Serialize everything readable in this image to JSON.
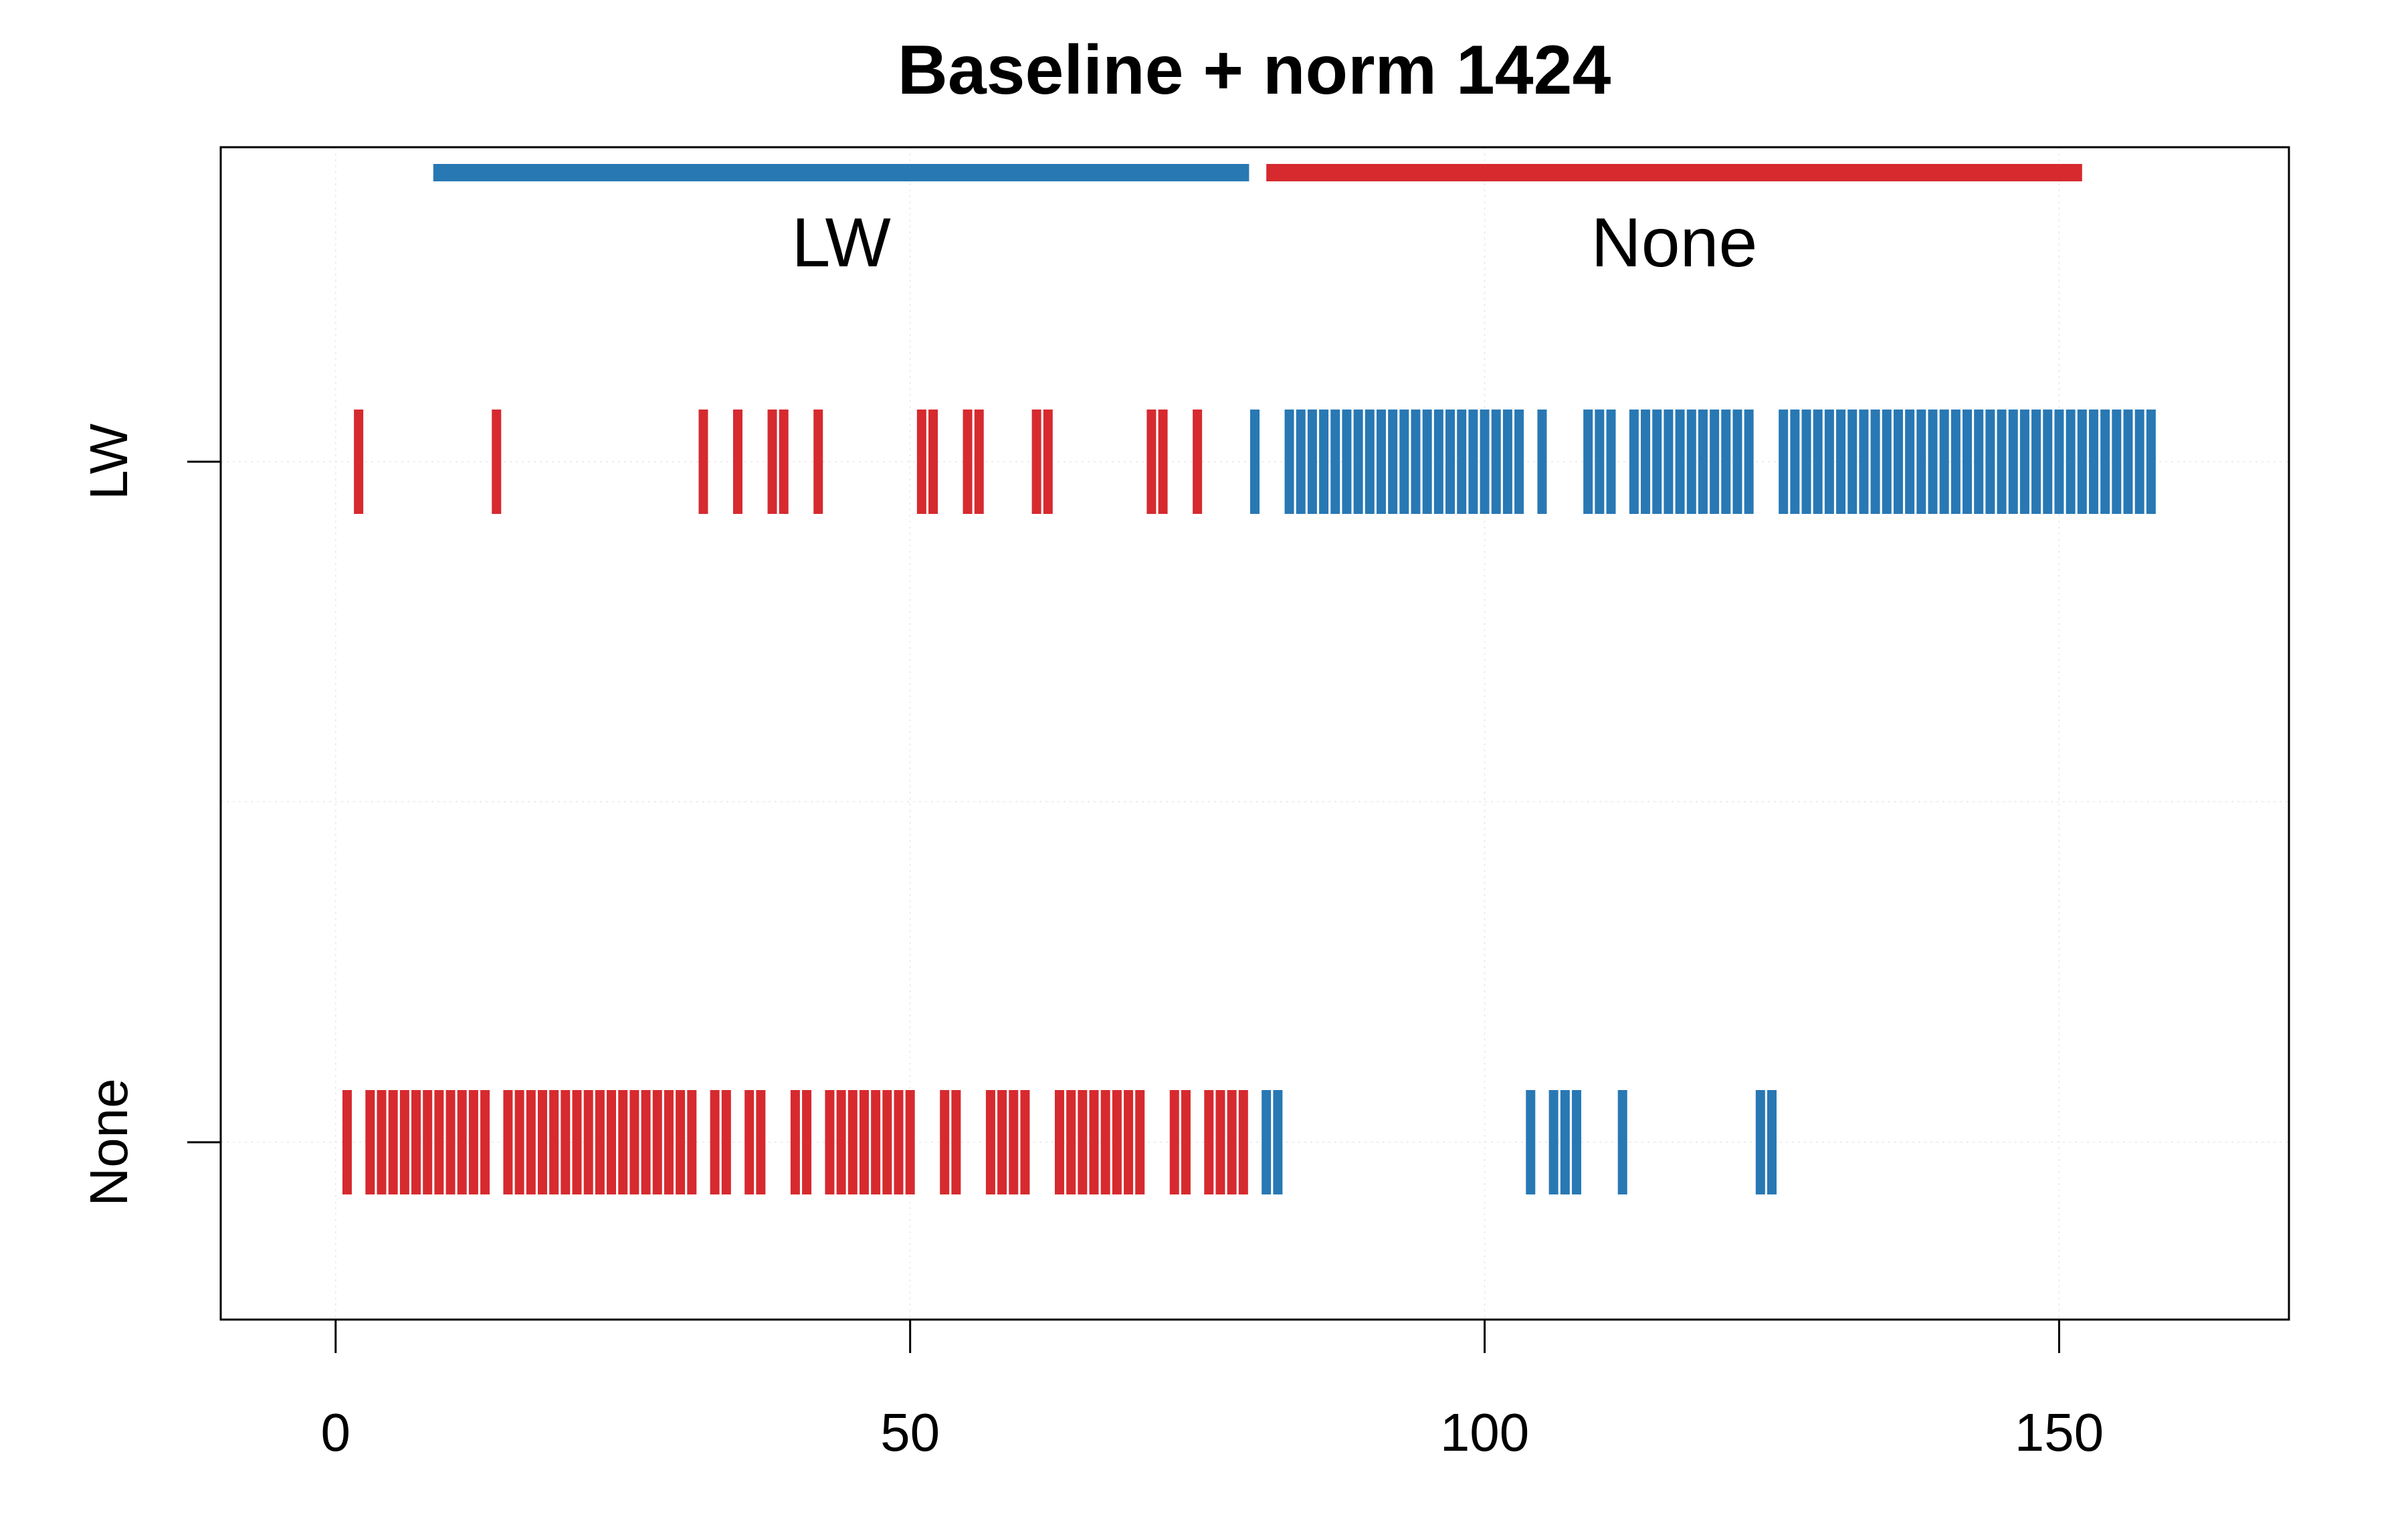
{
  "chart_data": {
    "type": "scatter",
    "title": "Baseline + norm 1424",
    "xlim": [
      -10,
      170
    ],
    "x_ticks": [
      "0",
      "50",
      "100",
      "150"
    ],
    "x_tick_values": [
      0,
      50,
      100,
      150
    ],
    "y_categories": [
      "LW",
      "None"
    ],
    "grid": true,
    "colors": {
      "LW": "#2878b4",
      "None": "#d62a2f"
    },
    "group_bars": [
      {
        "label": "LW",
        "color_class": "LW",
        "x_start": 8.5,
        "x_end": 79.5
      },
      {
        "label": "None",
        "color_class": "None",
        "x_start": 81,
        "x_end": 152
      }
    ],
    "rows": [
      {
        "row": "LW",
        "marks": [
          {
            "x": 2,
            "color_class": "None"
          },
          {
            "x": 14,
            "color_class": "None"
          },
          {
            "x": 32,
            "color_class": "None"
          },
          {
            "x": 35,
            "color_class": "None"
          },
          {
            "x": 38,
            "color_class": "None"
          },
          {
            "x": 39,
            "color_class": "None"
          },
          {
            "x": 42,
            "color_class": "None"
          },
          {
            "x": 51,
            "color_class": "None"
          },
          {
            "x": 52,
            "color_class": "None"
          },
          {
            "x": 55,
            "color_class": "None"
          },
          {
            "x": 56,
            "color_class": "None"
          },
          {
            "x": 61,
            "color_class": "None"
          },
          {
            "x": 62,
            "color_class": "None"
          },
          {
            "x": 71,
            "color_class": "None"
          },
          {
            "x": 72,
            "color_class": "None"
          },
          {
            "x": 75,
            "color_class": "None"
          },
          {
            "x": 80,
            "color_class": "LW"
          },
          {
            "x": 83,
            "color_class": "LW"
          },
          {
            "x": 84,
            "color_class": "LW"
          },
          {
            "x": 85,
            "color_class": "LW"
          },
          {
            "x": 86,
            "color_class": "LW"
          },
          {
            "x": 87,
            "color_class": "LW"
          },
          {
            "x": 88,
            "color_class": "LW"
          },
          {
            "x": 89,
            "color_class": "LW"
          },
          {
            "x": 90,
            "color_class": "LW"
          },
          {
            "x": 91,
            "color_class": "LW"
          },
          {
            "x": 92,
            "color_class": "LW"
          },
          {
            "x": 93,
            "color_class": "LW"
          },
          {
            "x": 94,
            "color_class": "LW"
          },
          {
            "x": 95,
            "color_class": "LW"
          },
          {
            "x": 96,
            "color_class": "LW"
          },
          {
            "x": 97,
            "color_class": "LW"
          },
          {
            "x": 98,
            "color_class": "LW"
          },
          {
            "x": 99,
            "color_class": "LW"
          },
          {
            "x": 100,
            "color_class": "LW"
          },
          {
            "x": 101,
            "color_class": "LW"
          },
          {
            "x": 102,
            "color_class": "LW"
          },
          {
            "x": 103,
            "color_class": "LW"
          },
          {
            "x": 105,
            "color_class": "LW"
          },
          {
            "x": 109,
            "color_class": "LW"
          },
          {
            "x": 110,
            "color_class": "LW"
          },
          {
            "x": 111,
            "color_class": "LW"
          },
          {
            "x": 113,
            "color_class": "LW"
          },
          {
            "x": 114,
            "color_class": "LW"
          },
          {
            "x": 115,
            "color_class": "LW"
          },
          {
            "x": 116,
            "color_class": "LW"
          },
          {
            "x": 117,
            "color_class": "LW"
          },
          {
            "x": 118,
            "color_class": "LW"
          },
          {
            "x": 119,
            "color_class": "LW"
          },
          {
            "x": 120,
            "color_class": "LW"
          },
          {
            "x": 121,
            "color_class": "LW"
          },
          {
            "x": 122,
            "color_class": "LW"
          },
          {
            "x": 123,
            "color_class": "LW"
          },
          {
            "x": 126,
            "color_class": "LW"
          },
          {
            "x": 127,
            "color_class": "LW"
          },
          {
            "x": 128,
            "color_class": "LW"
          },
          {
            "x": 129,
            "color_class": "LW"
          },
          {
            "x": 130,
            "color_class": "LW"
          },
          {
            "x": 131,
            "color_class": "LW"
          },
          {
            "x": 132,
            "color_class": "LW"
          },
          {
            "x": 133,
            "color_class": "LW"
          },
          {
            "x": 134,
            "color_class": "LW"
          },
          {
            "x": 135,
            "color_class": "LW"
          },
          {
            "x": 136,
            "color_class": "LW"
          },
          {
            "x": 137,
            "color_class": "LW"
          },
          {
            "x": 138,
            "color_class": "LW"
          },
          {
            "x": 139,
            "color_class": "LW"
          },
          {
            "x": 140,
            "color_class": "LW"
          },
          {
            "x": 141,
            "color_class": "LW"
          },
          {
            "x": 142,
            "color_class": "LW"
          },
          {
            "x": 143,
            "color_class": "LW"
          },
          {
            "x": 144,
            "color_class": "LW"
          },
          {
            "x": 145,
            "color_class": "LW"
          },
          {
            "x": 146,
            "color_class": "LW"
          },
          {
            "x": 147,
            "color_class": "LW"
          },
          {
            "x": 148,
            "color_class": "LW"
          },
          {
            "x": 149,
            "color_class": "LW"
          },
          {
            "x": 150,
            "color_class": "LW"
          },
          {
            "x": 151,
            "color_class": "LW"
          },
          {
            "x": 152,
            "color_class": "LW"
          },
          {
            "x": 153,
            "color_class": "LW"
          },
          {
            "x": 154,
            "color_class": "LW"
          },
          {
            "x": 155,
            "color_class": "LW"
          },
          {
            "x": 156,
            "color_class": "LW"
          },
          {
            "x": 157,
            "color_class": "LW"
          },
          {
            "x": 158,
            "color_class": "LW"
          }
        ]
      },
      {
        "row": "None",
        "marks": [
          {
            "x": 1,
            "color_class": "None"
          },
          {
            "x": 3,
            "color_class": "None"
          },
          {
            "x": 4,
            "color_class": "None"
          },
          {
            "x": 5,
            "color_class": "None"
          },
          {
            "x": 6,
            "color_class": "None"
          },
          {
            "x": 7,
            "color_class": "None"
          },
          {
            "x": 8,
            "color_class": "None"
          },
          {
            "x": 9,
            "color_class": "None"
          },
          {
            "x": 10,
            "color_class": "None"
          },
          {
            "x": 11,
            "color_class": "None"
          },
          {
            "x": 12,
            "color_class": "None"
          },
          {
            "x": 13,
            "color_class": "None"
          },
          {
            "x": 15,
            "color_class": "None"
          },
          {
            "x": 16,
            "color_class": "None"
          },
          {
            "x": 17,
            "color_class": "None"
          },
          {
            "x": 18,
            "color_class": "None"
          },
          {
            "x": 19,
            "color_class": "None"
          },
          {
            "x": 20,
            "color_class": "None"
          },
          {
            "x": 21,
            "color_class": "None"
          },
          {
            "x": 22,
            "color_class": "None"
          },
          {
            "x": 23,
            "color_class": "None"
          },
          {
            "x": 24,
            "color_class": "None"
          },
          {
            "x": 25,
            "color_class": "None"
          },
          {
            "x": 26,
            "color_class": "None"
          },
          {
            "x": 27,
            "color_class": "None"
          },
          {
            "x": 28,
            "color_class": "None"
          },
          {
            "x": 29,
            "color_class": "None"
          },
          {
            "x": 30,
            "color_class": "None"
          },
          {
            "x": 31,
            "color_class": "None"
          },
          {
            "x": 33,
            "color_class": "None"
          },
          {
            "x": 34,
            "color_class": "None"
          },
          {
            "x": 36,
            "color_class": "None"
          },
          {
            "x": 37,
            "color_class": "None"
          },
          {
            "x": 40,
            "color_class": "None"
          },
          {
            "x": 41,
            "color_class": "None"
          },
          {
            "x": 43,
            "color_class": "None"
          },
          {
            "x": 44,
            "color_class": "None"
          },
          {
            "x": 45,
            "color_class": "None"
          },
          {
            "x": 46,
            "color_class": "None"
          },
          {
            "x": 47,
            "color_class": "None"
          },
          {
            "x": 48,
            "color_class": "None"
          },
          {
            "x": 49,
            "color_class": "None"
          },
          {
            "x": 50,
            "color_class": "None"
          },
          {
            "x": 53,
            "color_class": "None"
          },
          {
            "x": 54,
            "color_class": "None"
          },
          {
            "x": 57,
            "color_class": "None"
          },
          {
            "x": 58,
            "color_class": "None"
          },
          {
            "x": 59,
            "color_class": "None"
          },
          {
            "x": 60,
            "color_class": "None"
          },
          {
            "x": 63,
            "color_class": "None"
          },
          {
            "x": 64,
            "color_class": "None"
          },
          {
            "x": 65,
            "color_class": "None"
          },
          {
            "x": 66,
            "color_class": "None"
          },
          {
            "x": 67,
            "color_class": "None"
          },
          {
            "x": 68,
            "color_class": "None"
          },
          {
            "x": 69,
            "color_class": "None"
          },
          {
            "x": 70,
            "color_class": "None"
          },
          {
            "x": 73,
            "color_class": "None"
          },
          {
            "x": 74,
            "color_class": "None"
          },
          {
            "x": 76,
            "color_class": "None"
          },
          {
            "x": 77,
            "color_class": "None"
          },
          {
            "x": 78,
            "color_class": "None"
          },
          {
            "x": 79,
            "color_class": "None"
          },
          {
            "x": 81,
            "color_class": "LW"
          },
          {
            "x": 82,
            "color_class": "LW"
          },
          {
            "x": 104,
            "color_class": "LW"
          },
          {
            "x": 106,
            "color_class": "LW"
          },
          {
            "x": 107,
            "color_class": "LW"
          },
          {
            "x": 108,
            "color_class": "LW"
          },
          {
            "x": 112,
            "color_class": "LW"
          },
          {
            "x": 124,
            "color_class": "LW"
          },
          {
            "x": 125,
            "color_class": "LW"
          }
        ]
      }
    ]
  }
}
